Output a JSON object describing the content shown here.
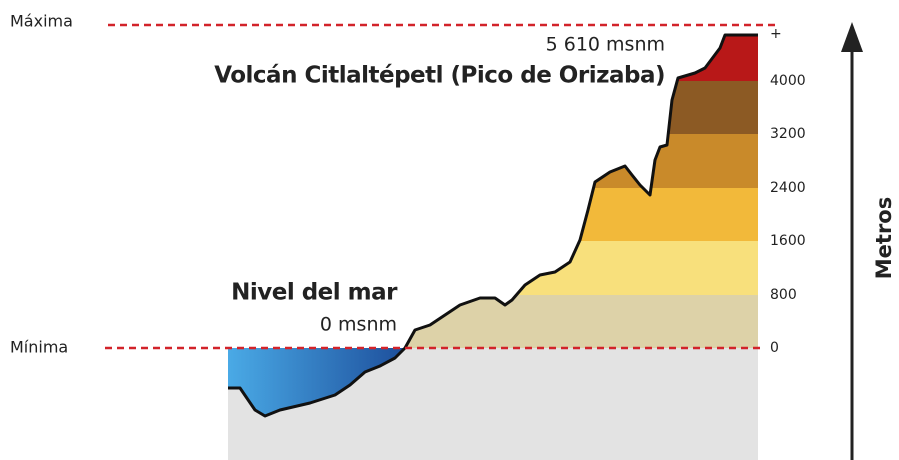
{
  "labels": {
    "max": "Máxima",
    "min": "Mínima",
    "summit_altitude": "5 610 msnm",
    "summit_name": "Volcán Citlaltépetl (Pico de Orizaba)",
    "sea_name": "Nivel del mar",
    "sea_altitude": "0 msnm",
    "axis": "Metros"
  },
  "scale": [
    "+",
    4000,
    3200,
    2400,
    1600,
    800,
    0
  ]
}
